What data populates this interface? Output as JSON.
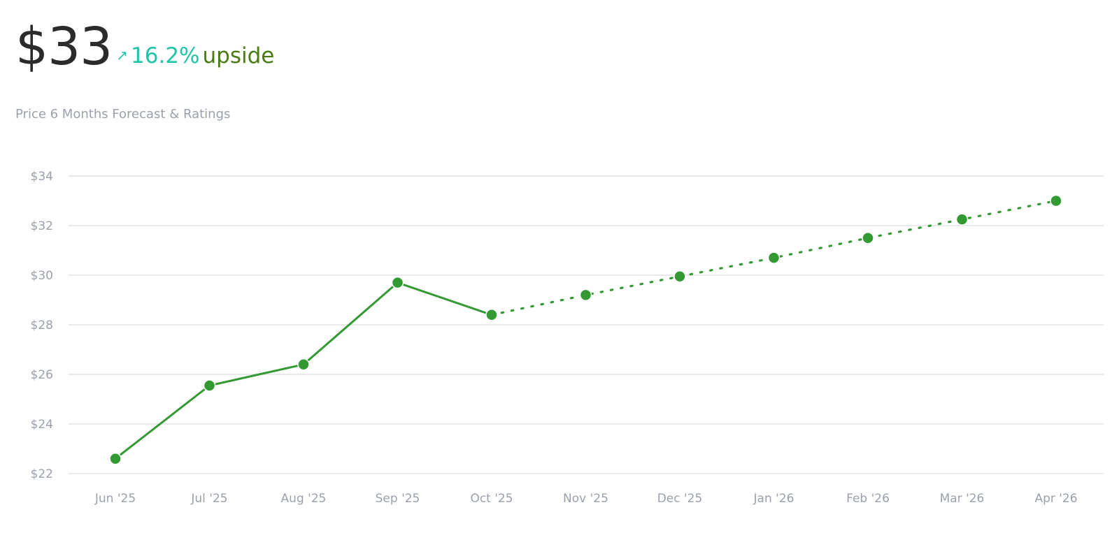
{
  "header": {
    "price": "$33",
    "arrow_icon": "arrow-up-right-icon",
    "arrow_glyph": "↗",
    "change_pct": "16.2%",
    "change_word": "upside",
    "subtitle": "Price 6 Months Forecast & Ratings"
  },
  "colors": {
    "line": "#339933",
    "upside": "#1fc4a8",
    "upside_word": "#4a7a12",
    "grid": "#d9dce1",
    "tick": "#9aa1ab"
  },
  "chart_data": {
    "type": "line",
    "categories": [
      "Jun '25",
      "Jul '25",
      "Aug '25",
      "Sep '25",
      "Oct '25",
      "Nov '25",
      "Dec '25",
      "Jan '26",
      "Feb '26",
      "Mar '26",
      "Apr '26"
    ],
    "series": [
      {
        "style": "solid",
        "values": [
          22.6,
          25.55,
          26.4,
          29.7,
          28.4,
          null,
          null,
          null,
          null,
          null,
          null
        ]
      },
      {
        "style": "dotted",
        "values": [
          null,
          null,
          null,
          null,
          28.4,
          29.2,
          29.95,
          30.7,
          31.5,
          32.25,
          33.0
        ]
      }
    ],
    "ylim": [
      22,
      34
    ],
    "yticks": [
      22,
      24,
      26,
      28,
      30,
      32,
      34
    ],
    "ytick_labels": [
      "$22",
      "$24",
      "$26",
      "$28",
      "$30",
      "$32",
      "$34"
    ],
    "grid": true,
    "legend": "none"
  }
}
